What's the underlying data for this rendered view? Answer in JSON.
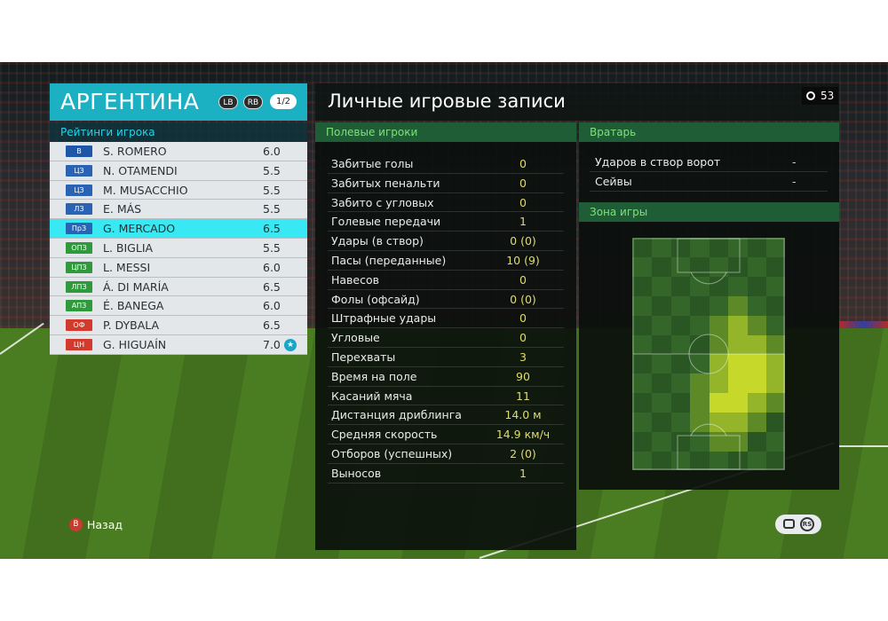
{
  "team": {
    "name": "АРГЕНТИНА",
    "lb": "LB",
    "rb": "RB",
    "page": "1/2"
  },
  "ratings_header": "Рейтинги игрока",
  "players": [
    {
      "pos": "В",
      "pos_color": "#1f57a8",
      "name": "S. ROMERO",
      "rating": "6.0"
    },
    {
      "pos": "ЦЗ",
      "pos_color": "#2a63b4",
      "name": "N. OTAMENDI",
      "rating": "5.5"
    },
    {
      "pos": "ЦЗ",
      "pos_color": "#2a63b4",
      "name": "M. MUSACCHIO",
      "rating": "5.5"
    },
    {
      "pos": "ЛЗ",
      "pos_color": "#2a63b4",
      "name": "E. MÁS",
      "rating": "5.5"
    },
    {
      "pos": "ПрЗ",
      "pos_color": "#2a63b4",
      "name": "G. MERCADO",
      "rating": "6.5"
    },
    {
      "pos": "ОПЗ",
      "pos_color": "#2e9a3c",
      "name": "L. BIGLIA",
      "rating": "5.5"
    },
    {
      "pos": "ЦПЗ",
      "pos_color": "#2e9a3c",
      "name": "L. MESSI",
      "rating": "6.0"
    },
    {
      "pos": "ЛПЗ",
      "pos_color": "#2e9a3c",
      "name": "Á. DI MARÍA",
      "rating": "6.5"
    },
    {
      "pos": "АПЗ",
      "pos_color": "#2e9a3c",
      "name": "É. BANEGA",
      "rating": "6.0"
    },
    {
      "pos": "ОФ",
      "pos_color": "#d23a2e",
      "name": "P. DYBALA",
      "rating": "6.5"
    },
    {
      "pos": "ЦН",
      "pos_color": "#d23a2e",
      "name": "G. HIGUAÍN",
      "rating": "7.0"
    }
  ],
  "selected_player_index": 4,
  "title": "Личные игровые записи",
  "clock": "53",
  "field_section": "Полевые игроки",
  "field_stats": [
    {
      "label": "Забитые голы",
      "value": "0"
    },
    {
      "label": "Забитых пенальти",
      "value": "0"
    },
    {
      "label": "Забито с угловых",
      "value": "0"
    },
    {
      "label": "Голевые передачи",
      "value": "1"
    },
    {
      "label": "Удары (в створ)",
      "value": "0 (0)"
    },
    {
      "label": "Пасы (переданные)",
      "value": "10 (9)"
    },
    {
      "label": "Навесов",
      "value": "0"
    },
    {
      "label": "Фолы (офсайд)",
      "value": "0 (0)"
    },
    {
      "label": "Штрафные удары",
      "value": "0"
    },
    {
      "label": "Угловые",
      "value": "0"
    },
    {
      "label": "Перехваты",
      "value": "3"
    },
    {
      "label": "Время на поле",
      "value": "90"
    },
    {
      "label": "Касаний мяча",
      "value": "11"
    },
    {
      "label": "Дистанция дриблинга",
      "value": "14.0 м"
    },
    {
      "label": "Средняя скорость",
      "value": "14.9 км/ч"
    },
    {
      "label": "Отборов (успешных)",
      "value": "2 (0)"
    },
    {
      "label": "Выносов",
      "value": "1"
    }
  ],
  "gk_section": "Вратарь",
  "gk_stats": [
    {
      "label": "Ударов в створ ворот",
      "value": "-"
    },
    {
      "label": "Сейвы",
      "value": "-"
    }
  ],
  "zone_section": "Зона игры",
  "back_button": {
    "key": "B",
    "label": "Назад"
  },
  "rs_label": "RS",
  "colors": {
    "team_header": "#1bb0c2",
    "selected_row": "#38e8f2",
    "section_header": "#1f5d36",
    "value_text": "#e0dc6a"
  }
}
